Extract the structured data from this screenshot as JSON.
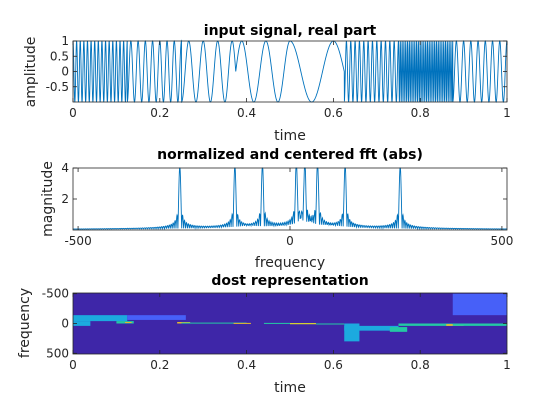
{
  "colors": {
    "line": "#0072bd",
    "axis": "#262626",
    "background": "#ffffff"
  },
  "chart_data": [
    {
      "type": "line",
      "title": "input signal, real part",
      "xlabel": "time",
      "ylabel": "amplitude",
      "xlim": [
        0,
        1
      ],
      "ylim": [
        -1,
        1
      ],
      "xticks": [
        "0",
        "0.2",
        "0.4",
        "0.6",
        "0.8",
        "1"
      ],
      "xtick_values": [
        0,
        0.2,
        0.4,
        0.6,
        0.8,
        1
      ],
      "yticks": [
        "1",
        "0.5",
        "0",
        "-0.5"
      ],
      "ytick_values": [
        1,
        0.5,
        0,
        -0.5
      ],
      "signal_segments": [
        {
          "t_start": 0.0,
          "t_end": 0.125,
          "frequency": 120
        },
        {
          "t_start": 0.125,
          "t_end": 0.25,
          "frequency": 60
        },
        {
          "t_start": 0.25,
          "t_end": 0.375,
          "frequency": 30
        },
        {
          "t_start": 0.375,
          "t_end": 0.5,
          "frequency": 18
        },
        {
          "t_start": 0.5,
          "t_end": 0.625,
          "frequency": 10
        },
        {
          "t_start": 0.625,
          "t_end": 0.75,
          "frequency": 100
        },
        {
          "t_start": 0.75,
          "t_end": 0.875,
          "frequency": 240
        },
        {
          "t_start": 0.875,
          "t_end": 1.0,
          "frequency": 60
        }
      ]
    },
    {
      "type": "line",
      "title": "normalized and centered fft (abs)",
      "xlabel": "frequency",
      "ylabel": "magnitude",
      "xlim": [
        -512,
        512
      ],
      "ylim": [
        0,
        4
      ],
      "xticks": [
        "-500",
        "0",
        "500"
      ],
      "xtick_values": [
        -500,
        0,
        500
      ],
      "yticks": [
        "4",
        "2"
      ],
      "ytick_values": [
        4,
        2
      ],
      "peaks": [
        {
          "frequency": -260,
          "magnitude": 4.0
        },
        {
          "frequency": -130,
          "magnitude": 4.0
        },
        {
          "frequency": -65,
          "magnitude": 4.0
        },
        {
          "frequency": 15,
          "magnitude": 4.0
        },
        {
          "frequency": 35,
          "magnitude": 4.0
        },
        {
          "frequency": 65,
          "magnitude": 4.0
        },
        {
          "frequency": 130,
          "magnitude": 4.0
        },
        {
          "frequency": 260,
          "magnitude": 4.0
        }
      ]
    },
    {
      "type": "heatmap",
      "title": "dost representation",
      "xlabel": "time",
      "ylabel": "frequency",
      "xlim": [
        0,
        1
      ],
      "ylim": [
        -512,
        512
      ],
      "xticks": [
        "0",
        "0.2",
        "0.4",
        "0.6",
        "0.8",
        "1"
      ],
      "xtick_values": [
        0,
        0.2,
        0.4,
        0.6,
        0.8,
        1
      ],
      "yticks": [
        "-500",
        "0",
        "500"
      ],
      "ytick_values": [
        -500,
        0,
        500
      ],
      "colormap": [
        "#3e26a8",
        "#4760f8",
        "#1caadf",
        "#24c9a4",
        "#e5ba2e",
        "#f9fb15"
      ],
      "cells": [
        {
          "t0": 0.0,
          "t1": 0.04,
          "f0": -40,
          "f1": 40,
          "value": 0.45
        },
        {
          "t0": 0.0,
          "t1": 0.125,
          "f0": -140,
          "f1": -40,
          "value": 0.3
        },
        {
          "t0": 0.1,
          "t1": 0.14,
          "f0": -40,
          "f1": 0,
          "value": 0.6
        },
        {
          "t0": 0.12,
          "t1": 0.135,
          "f0": -25,
          "f1": -10,
          "value": 0.85
        },
        {
          "t0": 0.125,
          "t1": 0.26,
          "f0": -140,
          "f1": -60,
          "value": 0.22
        },
        {
          "t0": 0.24,
          "t1": 0.27,
          "f0": -25,
          "f1": 0,
          "value": 0.8
        },
        {
          "t0": 0.25,
          "t1": 0.4,
          "f0": -15,
          "f1": 0,
          "value": 0.55
        },
        {
          "t0": 0.37,
          "t1": 0.41,
          "f0": -10,
          "f1": 0,
          "value": 0.75
        },
        {
          "t0": 0.5,
          "t1": 0.56,
          "f0": -5,
          "f1": 5,
          "value": 0.95
        },
        {
          "t0": 0.44,
          "t1": 0.5,
          "f0": -10,
          "f1": 0,
          "value": 0.6
        },
        {
          "t0": 0.56,
          "t1": 0.625,
          "f0": 0,
          "f1": 10,
          "value": 0.6
        },
        {
          "t0": 0.625,
          "t1": 0.66,
          "f0": 0,
          "f1": 300,
          "value": 0.35
        },
        {
          "t0": 0.625,
          "t1": 0.75,
          "f0": 40,
          "f1": 120,
          "value": 0.45
        },
        {
          "t0": 0.73,
          "t1": 0.77,
          "f0": 60,
          "f1": 140,
          "value": 0.65
        },
        {
          "t0": 0.75,
          "t1": 0.875,
          "f0": 0,
          "f1": 40,
          "value": 0.5
        },
        {
          "t0": 0.86,
          "t1": 0.9,
          "f0": 10,
          "f1": 40,
          "value": 0.85
        },
        {
          "t0": 0.875,
          "t1": 1.0,
          "f0": 0,
          "f1": 40,
          "value": 0.55
        },
        {
          "t0": 0.875,
          "t1": 1.0,
          "f0": -500,
          "f1": -140,
          "value": 0.2
        }
      ]
    }
  ]
}
